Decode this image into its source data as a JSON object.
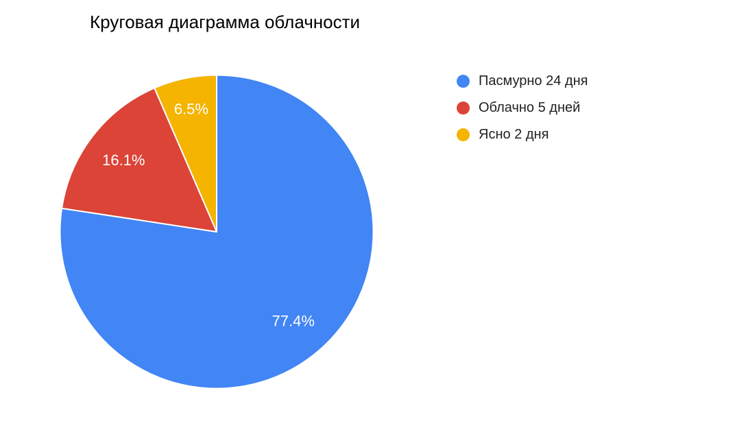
{
  "title": "Круговая диаграмма облачности",
  "colors": {
    "background": "#ffffff",
    "title_text": "#000000",
    "legend_text": "#212121",
    "slice_label_text": "#ffffff",
    "slice_border": "#ffffff"
  },
  "chart_data": {
    "type": "pie",
    "title": "Круговая диаграмма облачности",
    "categories": [
      "Пасмурно",
      "Облачно",
      "Ясно"
    ],
    "values": [
      24,
      5,
      2
    ],
    "percents": [
      77.4,
      16.1,
      6.5
    ],
    "legend_position": "right",
    "legend_marker": "circle",
    "start_angle_deg": 0,
    "direction": "clockwise",
    "slices": [
      {
        "label": "Пасмурно 24 дня",
        "category": "Пасмурно",
        "days": 24,
        "percent": 77.4,
        "percent_label": "77.4%",
        "color": "#4285F4"
      },
      {
        "label": "Облачно 5 дней",
        "category": "Облачно",
        "days": 5,
        "percent": 16.1,
        "percent_label": "16.1%",
        "color": "#DB4437"
      },
      {
        "label": "Ясно 2 дня",
        "category": "Ясно",
        "days": 2,
        "percent": 6.5,
        "percent_label": "6.5%",
        "color": "#F4B400"
      }
    ]
  }
}
